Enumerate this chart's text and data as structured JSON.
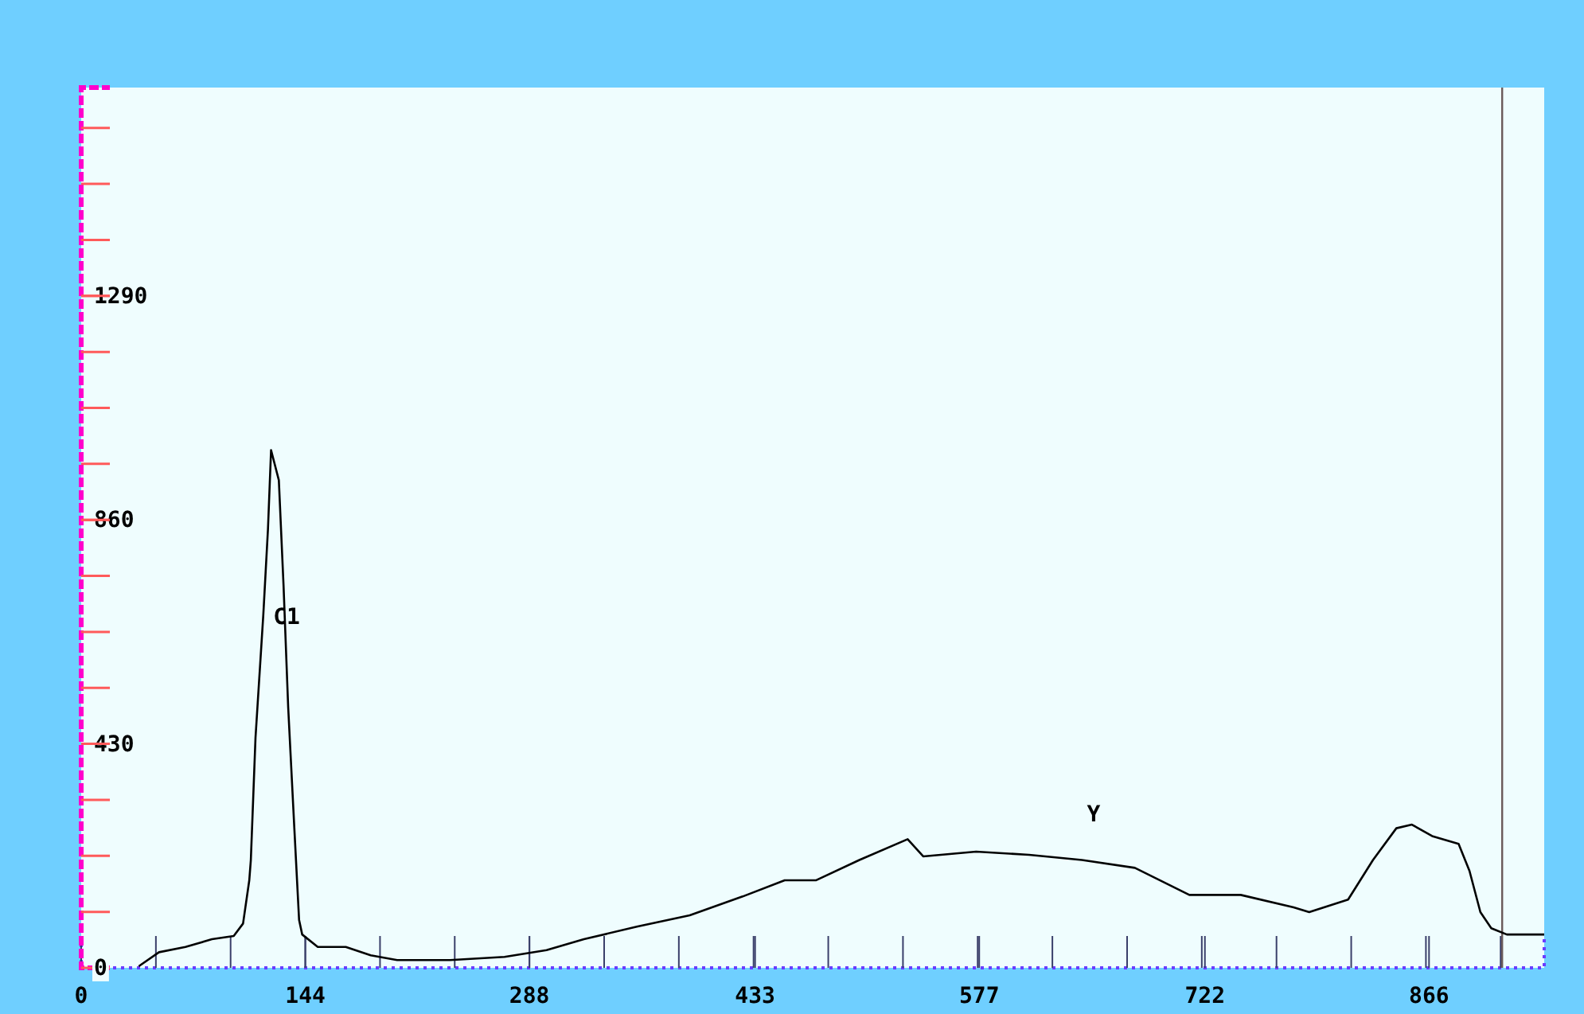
{
  "chart_data": {
    "type": "line",
    "color": "#000000",
    "x": [
      37,
      50,
      67,
      84,
      98,
      104,
      108,
      109,
      112,
      117,
      120,
      122,
      127,
      130,
      133,
      137,
      140,
      142,
      152,
      170,
      186,
      203,
      237,
      272,
      299,
      323,
      357,
      391,
      425,
      452,
      472,
      500,
      531,
      541,
      575,
      609,
      643,
      677,
      712,
      745,
      779,
      789,
      814,
      830,
      845,
      855,
      868,
      885,
      892,
      899,
      906,
      916,
      940
    ],
    "values": [
      3,
      30,
      40,
      55,
      61,
      85,
      168,
      207,
      442,
      677,
      842,
      994,
      936,
      735,
      500,
      265,
      92,
      64,
      40,
      40,
      24,
      15,
      15,
      21,
      34,
      55,
      79,
      101,
      137,
      168,
      168,
      207,
      247,
      214,
      223,
      217,
      207,
      192,
      140,
      140,
      116,
      107,
      131,
      207,
      268,
      275,
      253,
      238,
      186,
      107,
      76,
      64,
      64
    ],
    "xlim": [
      0,
      940
    ],
    "xticks": [
      0,
      144,
      288,
      433,
      577,
      722,
      866
    ],
    "ylim": [
      0,
      1690
    ],
    "yticks": [
      0,
      430,
      860,
      1290
    ],
    "annotations": [
      "C1",
      "Y"
    ],
    "ref_lines": [
      {
        "axis": "x",
        "value": 913,
        "color": "#6b5b5b"
      }
    ]
  }
}
